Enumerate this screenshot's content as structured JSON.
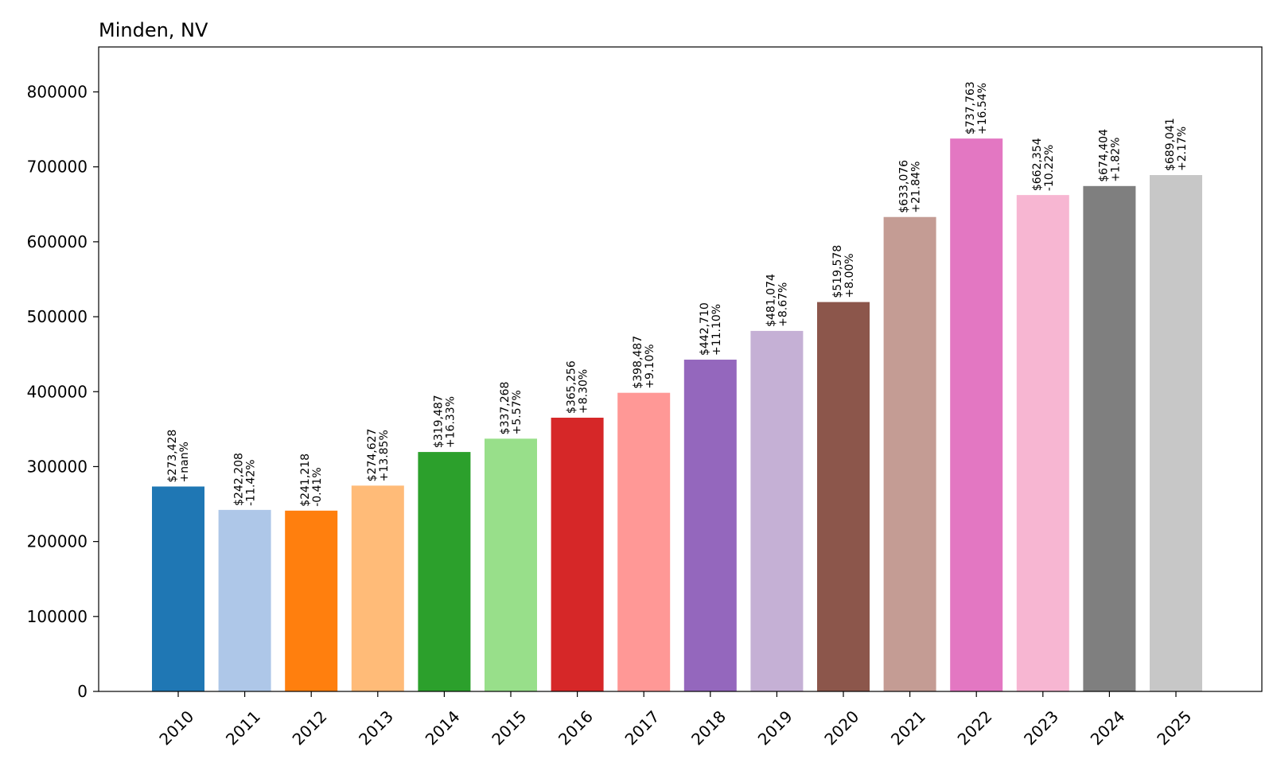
{
  "chart_data": {
    "type": "bar",
    "title": "Minden, NV",
    "xlabel": "",
    "ylabel": "",
    "ylim": [
      0,
      860000
    ],
    "yticks": [
      0,
      100000,
      200000,
      300000,
      400000,
      500000,
      600000,
      700000,
      800000
    ],
    "ytick_labels": [
      "0",
      "100000",
      "200000",
      "300000",
      "400000",
      "500000",
      "600000",
      "700000",
      "800000"
    ],
    "categories": [
      "2010",
      "2011",
      "2012",
      "2013",
      "2014",
      "2015",
      "2016",
      "2017",
      "2018",
      "2019",
      "2020",
      "2021",
      "2022",
      "2023",
      "2024",
      "2025"
    ],
    "values": [
      273428,
      242208,
      241218,
      274627,
      319487,
      337268,
      365256,
      398487,
      442710,
      481074,
      519578,
      633076,
      737763,
      662354,
      674404,
      689041
    ],
    "value_labels": [
      "$273,428",
      "$242,208",
      "$241,218",
      "$274,627",
      "$319,487",
      "$337,268",
      "$365,256",
      "$398,487",
      "$442,710",
      "$481,074",
      "$519,578",
      "$633,076",
      "$737,763",
      "$662,354",
      "$674,404",
      "$689,041"
    ],
    "change_labels": [
      "+nan%",
      "-11.42%",
      "-0.41%",
      "+13.85%",
      "+16.33%",
      "+5.57%",
      "+8.30%",
      "+9.10%",
      "+11.10%",
      "+8.67%",
      "+8.00%",
      "+21.84%",
      "+16.54%",
      "-10.22%",
      "+1.82%",
      "+2.17%"
    ],
    "colors": [
      "#1f77b4",
      "#aec7e8",
      "#ff7f0e",
      "#ffbb78",
      "#2ca02c",
      "#98df8a",
      "#d62728",
      "#ff9896",
      "#9467bd",
      "#c5b0d5",
      "#8c564b",
      "#c49c94",
      "#e377c2",
      "#f7b6d2",
      "#7f7f7f",
      "#c7c7c7"
    ],
    "grid": false,
    "legend": "none"
  }
}
